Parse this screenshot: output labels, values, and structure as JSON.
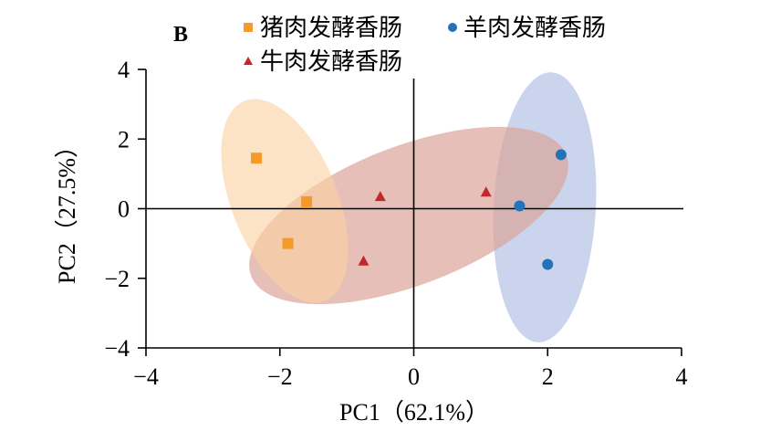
{
  "panel_label": "B",
  "chart_data": {
    "type": "scatter",
    "xlabel": "PC1（62.1%）",
    "ylabel": "PC2（27.5%）",
    "xlim": [
      -4,
      4
    ],
    "ylim": [
      -4,
      4
    ],
    "xticks": [
      -4,
      -2,
      0,
      2,
      4
    ],
    "yticks": [
      4,
      2,
      0,
      -2,
      -4
    ],
    "xtick_labels": [
      "−4",
      "−2",
      "0",
      "2",
      "4"
    ],
    "ytick_labels": [
      "4",
      "2",
      "0",
      "−2",
      "−4"
    ],
    "grid": false,
    "zero_lines": true,
    "legend_position": "top",
    "series": [
      {
        "name": "猪肉发酵香肠",
        "marker": "square",
        "color": "#f39a2a",
        "ellipse_color": "#fbd2a3",
        "points": [
          [
            -2.35,
            1.45
          ],
          [
            -1.6,
            0.2
          ],
          [
            -1.88,
            -1.0
          ]
        ]
      },
      {
        "name": "羊肉发酵香肠",
        "marker": "circle",
        "color": "#2672b8",
        "ellipse_color": "#aab9e2",
        "points": [
          [
            2.2,
            1.55
          ],
          [
            1.58,
            0.08
          ],
          [
            2.0,
            -1.6
          ]
        ]
      },
      {
        "name": "牛肉发酵香肠",
        "marker": "triangle",
        "color": "#c0282d",
        "ellipse_color": "#dba69c",
        "points": [
          [
            -0.5,
            0.35
          ],
          [
            1.08,
            0.48
          ],
          [
            -0.75,
            -1.5
          ]
        ]
      }
    ]
  }
}
